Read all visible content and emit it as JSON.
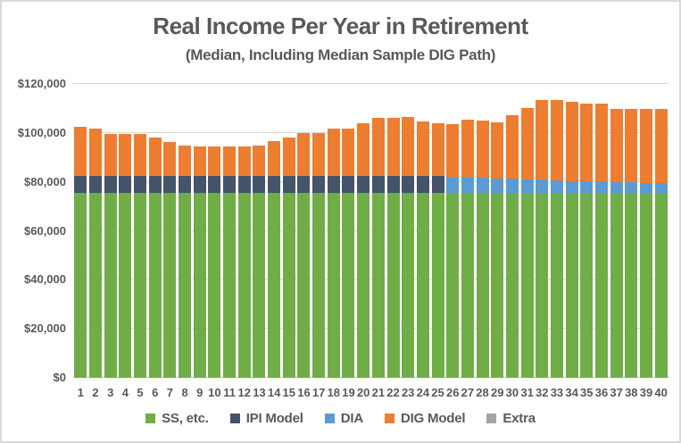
{
  "chart_data": {
    "type": "bar",
    "stacked": true,
    "title": "Real Income Per Year in Retirement",
    "subtitle": "(Median, Including Median Sample DIG Path)",
    "categories": [
      1,
      2,
      3,
      4,
      5,
      6,
      7,
      8,
      9,
      10,
      11,
      12,
      13,
      14,
      15,
      16,
      17,
      18,
      19,
      20,
      21,
      22,
      23,
      24,
      25,
      26,
      27,
      28,
      29,
      30,
      31,
      32,
      33,
      34,
      35,
      36,
      37,
      38,
      39,
      40
    ],
    "series": [
      {
        "name": "SS, etc.",
        "color": "#70AD47",
        "values": [
          75500,
          75500,
          75500,
          75500,
          75500,
          75500,
          75500,
          75500,
          75500,
          75500,
          75500,
          75500,
          75500,
          75500,
          75500,
          75500,
          75500,
          75500,
          75500,
          75500,
          75500,
          75500,
          75500,
          75500,
          75500,
          75500,
          75500,
          75500,
          75500,
          75500,
          75500,
          75500,
          75500,
          75500,
          75500,
          75500,
          75500,
          75500,
          75500,
          75500
        ]
      },
      {
        "name": "IPI Model",
        "color": "#44546A",
        "values": [
          6800,
          6800,
          6800,
          6800,
          6800,
          6800,
          6800,
          6800,
          6800,
          6800,
          6800,
          6800,
          6800,
          6800,
          6800,
          6800,
          6800,
          6800,
          6800,
          6800,
          6800,
          6800,
          6800,
          6800,
          6800,
          0,
          0,
          0,
          0,
          0,
          0,
          0,
          0,
          0,
          0,
          0,
          0,
          0,
          0,
          0
        ]
      },
      {
        "name": "DIA",
        "color": "#5B9BD5",
        "values": [
          0,
          0,
          0,
          0,
          0,
          0,
          0,
          0,
          0,
          0,
          0,
          0,
          0,
          0,
          0,
          0,
          0,
          0,
          0,
          0,
          0,
          0,
          0,
          0,
          0,
          6700,
          6500,
          6200,
          6000,
          5900,
          5600,
          5400,
          5200,
          4900,
          4800,
          4700,
          4400,
          4300,
          4100,
          3900
        ]
      },
      {
        "name": "DIG Model",
        "color": "#ED7D31",
        "values": [
          20300,
          19600,
          17400,
          17200,
          17400,
          15900,
          14100,
          12500,
          12300,
          12300,
          12300,
          12300,
          12500,
          14300,
          15700,
          17500,
          17500,
          19400,
          19600,
          21700,
          23900,
          23900,
          24100,
          22500,
          21600,
          21300,
          23400,
          23300,
          22900,
          25700,
          28900,
          32500,
          32700,
          32300,
          31700,
          31800,
          29900,
          30000,
          30200,
          30400
        ]
      },
      {
        "name": "Extra",
        "color": "#A5A5A5",
        "values": [
          0,
          0,
          0,
          0,
          0,
          0,
          0,
          0,
          0,
          0,
          0,
          0,
          0,
          0,
          0,
          0,
          0,
          0,
          0,
          0,
          0,
          0,
          0,
          0,
          0,
          0,
          0,
          0,
          0,
          0,
          0,
          0,
          0,
          0,
          0,
          0,
          0,
          0,
          0,
          0
        ]
      }
    ],
    "ylim": [
      0,
      120000
    ],
    "ytick_interval": 20000,
    "ytick_labels": [
      "$0",
      "$20,000",
      "$40,000",
      "$60,000",
      "$80,000",
      "$100,000",
      "$120,000"
    ],
    "xlabel": "",
    "ylabel": "",
    "grid": true,
    "legend_position": "bottom"
  },
  "colors": {
    "title_text": "#595959",
    "axis_text": "#595959",
    "gridline": "#D9D9D9",
    "axis_line": "#BFBFBF",
    "frame_border": "#D9D9D9",
    "background": "#FFFFFF"
  }
}
